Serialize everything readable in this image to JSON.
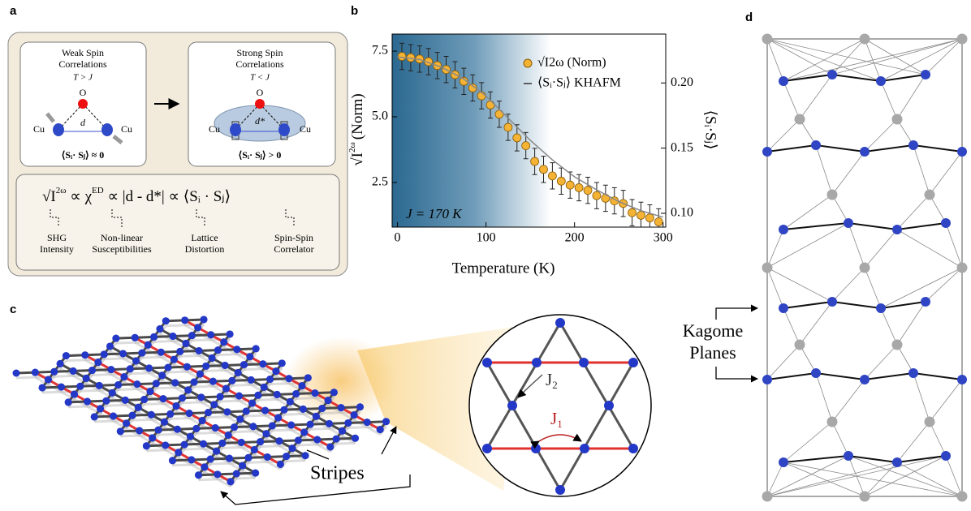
{
  "panel_labels": [
    "a",
    "b",
    "c",
    "d"
  ],
  "panel_a": {
    "weak": {
      "title": [
        "Weak Spin",
        "Correlations"
      ],
      "condition": "T > J",
      "oxygen": "O",
      "copper": [
        "Cu",
        "Cu"
      ],
      "distance": "d",
      "correlator": "⟨Sᵢ· Sⱼ⟩ ≈ 0"
    },
    "strong": {
      "title": [
        "Strong Spin",
        "Correlations"
      ],
      "condition": "T < J",
      "oxygen": "O",
      "copper": [
        "Cu",
        "Cu"
      ],
      "distance": "d*",
      "correlator": "⟨Sᵢ· Sⱼ⟩ > 0"
    },
    "formula": [
      "√I",
      "2ω",
      " ∝ χ",
      "ED",
      " ∝ |d - d*| ∝ ⟨Sᵢ · Sⱼ⟩"
    ],
    "formula_labels": [
      [
        "SHG",
        "Intensity"
      ],
      [
        "Non-linear",
        "Susceptibilities"
      ],
      [
        "Lattice",
        "Distortion"
      ],
      [
        "Spin-Spin",
        "Correlator"
      ]
    ]
  },
  "chart_data": {
    "type": "line",
    "xlabel": "Temperature (K)",
    "ylabel": [
      "√I",
      "2ω",
      "(Norm)"
    ],
    "y2label": "⟨Sᵢ·Sⱼ⟩",
    "annotation": "J = 170 K",
    "xlim": [
      -6,
      303
    ],
    "ylim": [
      0.8,
      8.15
    ],
    "y2lim": [
      0.0894,
      0.2375
    ],
    "xticks": [
      0,
      100,
      200,
      300
    ],
    "yticks": [
      2.5,
      {
        "value": 5,
        "label": "5.0"
      },
      7.5
    ],
    "y2ticks": [
      {
        "value": 0.1,
        "label": "0.10"
      },
      {
        "value": 0.15,
        "label": "0.15"
      },
      {
        "value": 0.2,
        "label": "0.20"
      }
    ],
    "legend": "upper right",
    "series": [
      {
        "name": "√I2ω (Norm)",
        "color": "#f5b335",
        "marker": "circle",
        "x": [
          5,
          15,
          25,
          35,
          45,
          55,
          65,
          75,
          85,
          95,
          105,
          115,
          125,
          135,
          145,
          155,
          165,
          175,
          185,
          195,
          205,
          215,
          225,
          235,
          245,
          255,
          265,
          275,
          285,
          295
        ],
        "values": [
          7.3,
          7.25,
          7.2,
          7.1,
          6.95,
          6.8,
          6.6,
          6.35,
          6.1,
          5.8,
          5.45,
          5.1,
          4.6,
          4.2,
          3.9,
          3.3,
          3.0,
          2.75,
          2.55,
          2.4,
          2.3,
          2.2,
          2.0,
          1.9,
          1.8,
          1.7,
          1.35,
          1.25,
          1.15,
          1.0
        ],
        "errors": [
          0.5,
          0.5,
          0.5,
          0.5,
          0.5,
          0.5,
          0.5,
          0.5,
          0.5,
          0.5,
          0.5,
          0.5,
          0.5,
          0.5,
          0.5,
          0.5,
          0.5,
          0.5,
          0.5,
          0.5,
          0.5,
          0.5,
          0.5,
          0.5,
          0.5,
          0.5,
          0.5,
          0.5,
          0.5,
          0.5
        ]
      },
      {
        "name": "⟨Sᵢ·Sⱼ⟩ KHAFM",
        "color": "#888888",
        "axis": "y2",
        "x": [
          0,
          25,
          50,
          75,
          100,
          125,
          150,
          175,
          200,
          225,
          250,
          275,
          300
        ],
        "values": [
          0.22,
          0.218,
          0.212,
          0.203,
          0.19,
          0.173,
          0.156,
          0.141,
          0.128,
          0.118,
          0.109,
          0.102,
          0.097
        ]
      }
    ]
  },
  "panel_c": {
    "couplings": [
      "J",
      "2",
      "J",
      "1"
    ],
    "stripes": "Stripes"
  },
  "panel_d": {
    "kagome": [
      "Kagome",
      "Planes"
    ]
  }
}
